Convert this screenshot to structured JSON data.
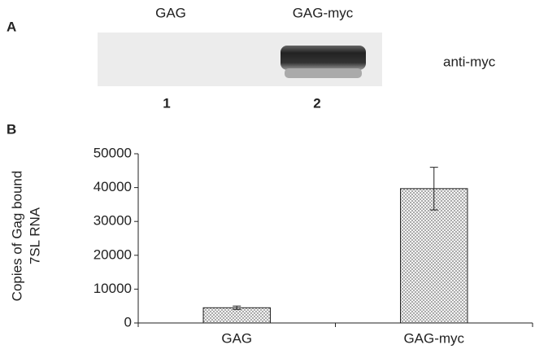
{
  "panel_a": {
    "label": "A",
    "lanes": [
      "GAG",
      "GAG-myc"
    ],
    "lane_numbers": [
      "1",
      "2"
    ],
    "antibody": "anti-myc"
  },
  "chart_data": {
    "type": "bar",
    "panel_label": "B",
    "ylabel": [
      "Copies of Gag bound",
      "7SL RNA"
    ],
    "categories": [
      "GAG",
      "GAG-myc"
    ],
    "values": [
      4500,
      39700
    ],
    "errors": [
      500,
      6300
    ],
    "color": "#777777",
    "ylim": [
      0,
      50000
    ],
    "yticks": [
      0,
      10000,
      20000,
      30000,
      40000,
      50000
    ]
  }
}
